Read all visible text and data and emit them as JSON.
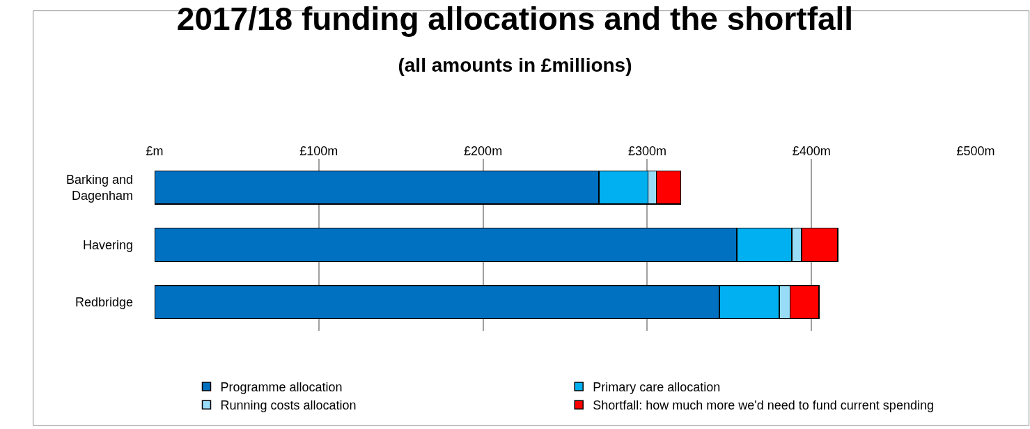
{
  "chart_data": {
    "type": "bar",
    "orientation": "horizontal",
    "stacked": true,
    "title": "2017/18 funding allocations and the shortfall",
    "subtitle": "(all amounts in £millions)",
    "categories": [
      "Barking and Dagenham",
      "Havering",
      "Redbridge"
    ],
    "series": [
      {
        "name": "Programme allocation",
        "color": "#0070c0",
        "values": [
          270.5,
          354.5,
          344
        ]
      },
      {
        "name": "Primary care allocation",
        "color": "#00b0f0",
        "values": [
          30,
          33.5,
          36.5
        ]
      },
      {
        "name": "Running costs allocation",
        "color": "#99dcf8",
        "values": [
          5,
          6,
          6.5
        ]
      },
      {
        "name": "Shortfall: how much more we'd need to fund current spending",
        "color": "#ff0000",
        "values": [
          15,
          22,
          17.5
        ]
      }
    ],
    "xlim": [
      0,
      500
    ],
    "xticks": [
      {
        "value": 0,
        "label": "£m"
      },
      {
        "value": 100,
        "label": "£100m"
      },
      {
        "value": 200,
        "label": "£200m"
      },
      {
        "value": 300,
        "label": "£300m"
      },
      {
        "value": 400,
        "label": "£400m"
      },
      {
        "value": 500,
        "label": "£500m"
      }
    ],
    "grid": "x",
    "legend": "bottom"
  }
}
